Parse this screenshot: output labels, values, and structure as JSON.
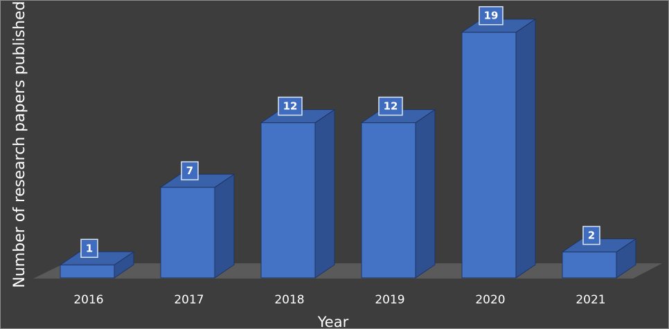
{
  "chart_data": {
    "type": "bar",
    "style": "3d-column",
    "categories": [
      "2016",
      "2017",
      "2018",
      "2019",
      "2020",
      "2021"
    ],
    "values": [
      1,
      7,
      12,
      12,
      19,
      2
    ],
    "title": "",
    "xlabel": "Year",
    "ylabel": "Number of research papers published",
    "ylim": [
      0,
      19
    ],
    "grid": false,
    "legend": "none",
    "data_labels": [
      "1",
      "7",
      "12",
      "12",
      "19",
      "2"
    ],
    "colors": {
      "background": "#3d3d3d",
      "floor": "#5a5a5a",
      "bar_front": "#4472c4",
      "bar_top": "#3a62ab",
      "bar_side": "#2f5090",
      "bar_edge": "#1e3563",
      "label_box": "#3f6cbf",
      "label_box_border": "#dce6f5",
      "text": "#ffffff"
    }
  }
}
